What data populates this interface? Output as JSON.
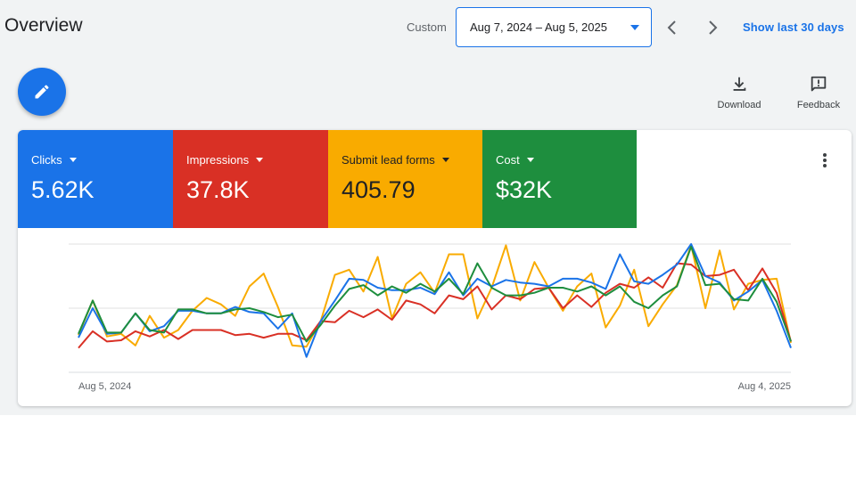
{
  "header": {
    "title": "Overview",
    "custom_label": "Custom",
    "date_range": "Aug 7, 2024 – Aug 5, 2025",
    "show_last": "Show last 30 days"
  },
  "actions": {
    "download_label": "Download",
    "feedback_label": "Feedback"
  },
  "metrics": [
    {
      "label": "Clicks",
      "value": "5.62K",
      "color": "#1a73e8"
    },
    {
      "label": "Impressions",
      "value": "37.8K",
      "color": "#d93025"
    },
    {
      "label": "Submit lead forms",
      "value": "405.79",
      "color": "#f9ab00"
    },
    {
      "label": "Cost",
      "value": "$32K",
      "color": "#1e8e3e"
    }
  ],
  "chart_data": {
    "type": "line",
    "x_start_label": "Aug 5, 2024",
    "x_end_label": "Aug 4, 2025",
    "grid": true,
    "ylim": [
      0,
      100
    ],
    "series": [
      {
        "name": "Clicks",
        "color": "#1a73e8",
        "values": [
          27,
          50,
          30,
          31,
          46,
          32,
          36,
          48,
          48,
          46,
          46,
          51,
          47,
          46,
          34,
          46,
          12,
          40,
          56,
          73,
          72,
          66,
          64,
          64,
          66,
          61,
          78,
          60,
          73,
          67,
          72,
          70,
          69,
          67,
          73,
          73,
          70,
          65,
          92,
          71,
          69,
          76,
          84,
          100,
          75,
          70,
          56,
          63,
          72,
          48,
          19
        ]
      },
      {
        "name": "Impressions",
        "color": "#d93025",
        "values": [
          19,
          32,
          24,
          25,
          32,
          28,
          33,
          26,
          33,
          33,
          33,
          29,
          30,
          27,
          30,
          30,
          25,
          40,
          39,
          48,
          43,
          49,
          41,
          56,
          53,
          46,
          60,
          57,
          67,
          49,
          60,
          57,
          65,
          66,
          50,
          60,
          51,
          62,
          69,
          66,
          74,
          66,
          85,
          84,
          75,
          76,
          80,
          64,
          81,
          62,
          24
        ]
      },
      {
        "name": "Submit lead forms",
        "color": "#f9ab00",
        "values": [
          29,
          56,
          28,
          30,
          21,
          44,
          27,
          33,
          48,
          58,
          53,
          44,
          67,
          77,
          51,
          21,
          20,
          40,
          76,
          80,
          63,
          90,
          42,
          69,
          78,
          62,
          92,
          92,
          42,
          66,
          99,
          56,
          86,
          66,
          48,
          67,
          77,
          35,
          52,
          80,
          36,
          53,
          68,
          99,
          50,
          95,
          49,
          69,
          72,
          73,
          23
        ]
      },
      {
        "name": "Cost",
        "color": "#1e8e3e",
        "values": [
          30,
          56,
          31,
          31,
          46,
          33,
          31,
          49,
          49,
          46,
          46,
          49,
          50,
          47,
          43,
          45,
          24,
          37,
          52,
          65,
          68,
          60,
          67,
          62,
          69,
          63,
          73,
          61,
          85,
          66,
          60,
          60,
          62,
          66,
          66,
          63,
          67,
          60,
          67,
          55,
          50,
          60,
          67,
          98,
          68,
          69,
          57,
          56,
          73,
          55,
          24
        ]
      }
    ]
  }
}
